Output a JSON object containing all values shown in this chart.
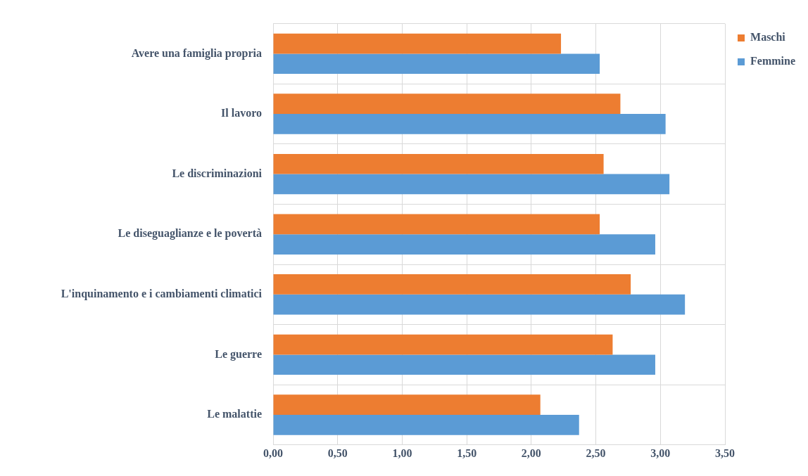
{
  "chart_data": {
    "type": "bar",
    "orientation": "horizontal",
    "categories": [
      "Avere una famiglia propria",
      "Il lavoro",
      "Le discriminazioni",
      "Le diseguaglianze e le povertà",
      "L'inquinamento e i cambiamenti climatici",
      "Le guerre",
      "Le malattie"
    ],
    "series": [
      {
        "name": "Maschi",
        "color": "#ed7d31",
        "values": [
          2.23,
          2.69,
          2.56,
          2.53,
          2.77,
          2.63,
          2.07
        ]
      },
      {
        "name": "Femmine",
        "color": "#5b9bd5",
        "values": [
          2.53,
          3.04,
          3.07,
          2.96,
          3.19,
          2.96,
          2.37
        ]
      }
    ],
    "xlim": [
      0,
      3.5
    ],
    "xticks": [
      {
        "value": 0,
        "label": "0,00"
      },
      {
        "value": 0.5,
        "label": "0,50"
      },
      {
        "value": 1,
        "label": "1,00"
      },
      {
        "value": 1.5,
        "label": "1,50"
      },
      {
        "value": 2,
        "label": "2,00"
      },
      {
        "value": 2.5,
        "label": "2,50"
      },
      {
        "value": 3,
        "label": "3,00"
      },
      {
        "value": 3.5,
        "label": "3,50"
      }
    ],
    "grid": true,
    "legend": "top right"
  }
}
